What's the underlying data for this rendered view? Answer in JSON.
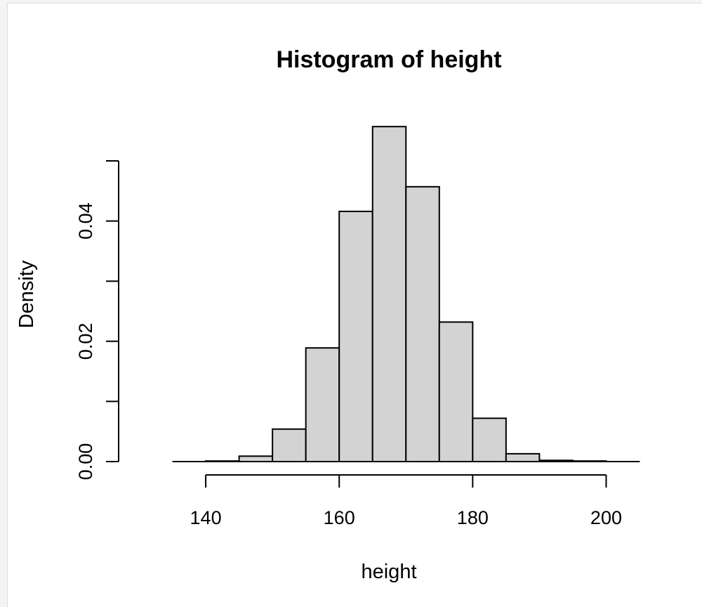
{
  "chart_data": {
    "type": "bar",
    "title": "Histogram of height",
    "xlabel": "height",
    "ylabel": "Density",
    "bin_edges": [
      135,
      140,
      145,
      150,
      155,
      160,
      165,
      170,
      175,
      180,
      185,
      190,
      195,
      200
    ],
    "values": [
      0.0,
      0.0001,
      0.0009,
      0.0054,
      0.0189,
      0.0416,
      0.0557,
      0.0457,
      0.0232,
      0.0072,
      0.0013,
      0.0002,
      0.0001
    ],
    "xlim": [
      130,
      205
    ],
    "ylim": [
      0,
      0.05
    ],
    "x_ticks": [
      140,
      160,
      180,
      200
    ],
    "x_tick_labels": [
      "140",
      "160",
      "180",
      "200"
    ],
    "y_ticks": [
      0,
      0.01,
      0.02,
      0.03,
      0.04,
      0.05
    ],
    "y_tick_labels": [
      "0.00",
      "",
      "0.02",
      "",
      "0.04",
      ""
    ],
    "bar_color": "#d3d3d3",
    "edge_color": "#000000",
    "grid": false,
    "legend": "none"
  }
}
